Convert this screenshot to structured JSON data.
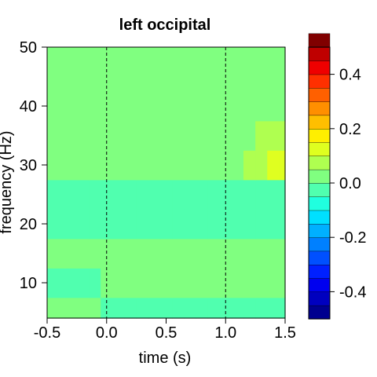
{
  "chart_data": {
    "type": "heatmap",
    "title": "left occipital",
    "xlabel": "time (s)",
    "ylabel": "frequency (Hz)",
    "xlim": [
      -0.5,
      1.5
    ],
    "ylim": [
      4,
      50
    ],
    "x_ticks": [
      {
        "value": -0.5,
        "label": "-0.5"
      },
      {
        "value": 0.0,
        "label": "0.0"
      },
      {
        "value": 0.5,
        "label": "0.5"
      },
      {
        "value": 1.0,
        "label": "1.0"
      },
      {
        "value": 1.5,
        "label": "1.5"
      }
    ],
    "y_ticks": [
      {
        "value": 10,
        "label": "10"
      },
      {
        "value": 20,
        "label": "20"
      },
      {
        "value": 30,
        "label": "30"
      },
      {
        "value": 40,
        "label": "40"
      },
      {
        "value": 50,
        "label": "50"
      }
    ],
    "vlines": [
      0.0,
      1.0
    ],
    "vline_style": "dashed",
    "colorbar": {
      "min": -0.5,
      "max": 0.5,
      "step": 0.05,
      "ticks": [
        {
          "value": 0.4,
          "label": "0.4"
        },
        {
          "value": 0.2,
          "label": "0.2"
        },
        {
          "value": 0.0,
          "label": "0.0"
        },
        {
          "value": -0.2,
          "label": "-0.2"
        },
        {
          "value": -0.4,
          "label": "-0.4"
        }
      ],
      "colors": [
        "#00008F",
        "#0000BF",
        "#0000EF",
        "#0020FF",
        "#0050FF",
        "#0080FF",
        "#00B0FF",
        "#00E0FF",
        "#20FFDF",
        "#50FFAF",
        "#80FF80",
        "#AFFF50",
        "#DFFF20",
        "#FFEF00",
        "#FFBF00",
        "#FF8F00",
        "#FF6000",
        "#FF3000",
        "#EF0000",
        "#BF0000",
        "#800000"
      ]
    },
    "x": [
      -0.5,
      -0.4,
      -0.3,
      -0.2,
      -0.1,
      0.0,
      0.1,
      0.2,
      0.3,
      0.4,
      0.5,
      0.6,
      0.7,
      0.8,
      0.9,
      1.0,
      1.1,
      1.2,
      1.3,
      1.4,
      1.5
    ],
    "y": [
      5,
      10,
      15,
      20,
      25,
      30,
      35,
      40,
      45,
      50
    ],
    "values": [
      [
        0.0,
        0.0,
        0.0,
        0.0,
        0.0,
        -0.02,
        -0.02,
        -0.02,
        -0.02,
        -0.02,
        -0.02,
        -0.02,
        -0.02,
        -0.02,
        -0.02,
        -0.02,
        -0.02,
        -0.02,
        -0.02,
        -0.02,
        -0.02
      ],
      [
        -0.02,
        -0.02,
        -0.02,
        -0.02,
        -0.02,
        0.0,
        0.0,
        0.0,
        0.0,
        0.0,
        0.0,
        0.0,
        0.0,
        0.0,
        0.0,
        0.0,
        0.0,
        0.0,
        0.0,
        0.0,
        0.0
      ],
      [
        0.0,
        0.0,
        0.0,
        0.0,
        0.0,
        0.02,
        0.02,
        0.02,
        0.02,
        0.02,
        0.02,
        0.02,
        0.02,
        0.02,
        0.02,
        0.02,
        0.02,
        0.02,
        0.02,
        0.02,
        0.02
      ],
      [
        -0.02,
        -0.02,
        -0.02,
        -0.02,
        -0.02,
        -0.04,
        -0.04,
        -0.04,
        -0.04,
        -0.04,
        -0.04,
        -0.04,
        -0.04,
        -0.04,
        -0.04,
        -0.04,
        -0.04,
        -0.04,
        -0.04,
        -0.04,
        -0.04
      ],
      [
        -0.02,
        -0.02,
        -0.02,
        -0.02,
        -0.02,
        -0.04,
        -0.04,
        -0.04,
        -0.04,
        -0.04,
        -0.04,
        -0.04,
        -0.04,
        -0.04,
        -0.04,
        -0.04,
        -0.04,
        -0.04,
        -0.04,
        -0.04,
        -0.04
      ],
      [
        0.02,
        0.02,
        0.02,
        0.02,
        0.02,
        0.0,
        0.0,
        0.0,
        0.0,
        0.0,
        0.02,
        0.02,
        0.02,
        0.02,
        0.02,
        0.04,
        0.04,
        0.06,
        0.08,
        0.1,
        0.1
      ],
      [
        0.02,
        0.02,
        0.02,
        0.02,
        0.02,
        0.02,
        0.02,
        0.02,
        0.02,
        0.02,
        0.02,
        0.02,
        0.02,
        0.02,
        0.02,
        0.02,
        0.04,
        0.04,
        0.06,
        0.08,
        0.08
      ],
      [
        0.0,
        0.0,
        0.0,
        0.0,
        0.0,
        0.02,
        0.02,
        0.02,
        0.02,
        0.02,
        0.02,
        0.02,
        0.02,
        0.02,
        0.02,
        0.0,
        0.0,
        0.0,
        0.0,
        0.0,
        0.0
      ],
      [
        0.0,
        0.0,
        0.0,
        0.0,
        0.0,
        0.02,
        0.02,
        0.02,
        0.02,
        0.02,
        0.02,
        0.02,
        0.02,
        0.02,
        0.02,
        0.02,
        0.02,
        0.02,
        0.02,
        0.02,
        0.02
      ],
      [
        0.0,
        0.0,
        0.0,
        0.0,
        0.0,
        0.02,
        0.02,
        0.02,
        0.02,
        0.02,
        0.02,
        0.02,
        0.02,
        0.02,
        0.02,
        0.02,
        0.02,
        0.02,
        0.02,
        0.02,
        0.02
      ]
    ]
  }
}
